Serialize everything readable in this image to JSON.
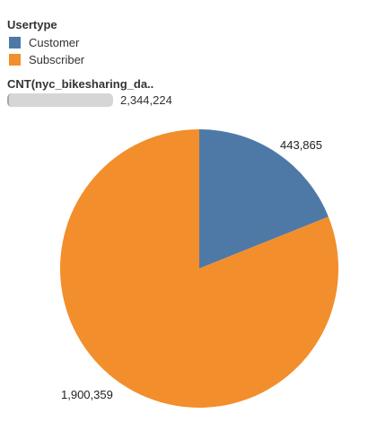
{
  "legend": {
    "title": "Usertype",
    "items": [
      {
        "label": "Customer",
        "color": "#4e79a7"
      },
      {
        "label": "Subscriber",
        "color": "#f28e2b"
      }
    ]
  },
  "size_legend": {
    "title": "CNT(nyc_bikesharing_da..",
    "value": "2,344,224"
  },
  "chart_data": {
    "type": "pie",
    "title": "",
    "series": [
      {
        "name": "Customer",
        "value": 443865,
        "label": "443,865",
        "color": "#4e79a7"
      },
      {
        "name": "Subscriber",
        "value": 1900359,
        "label": "1,900,359",
        "color": "#f28e2b"
      }
    ],
    "total": 2344224
  }
}
